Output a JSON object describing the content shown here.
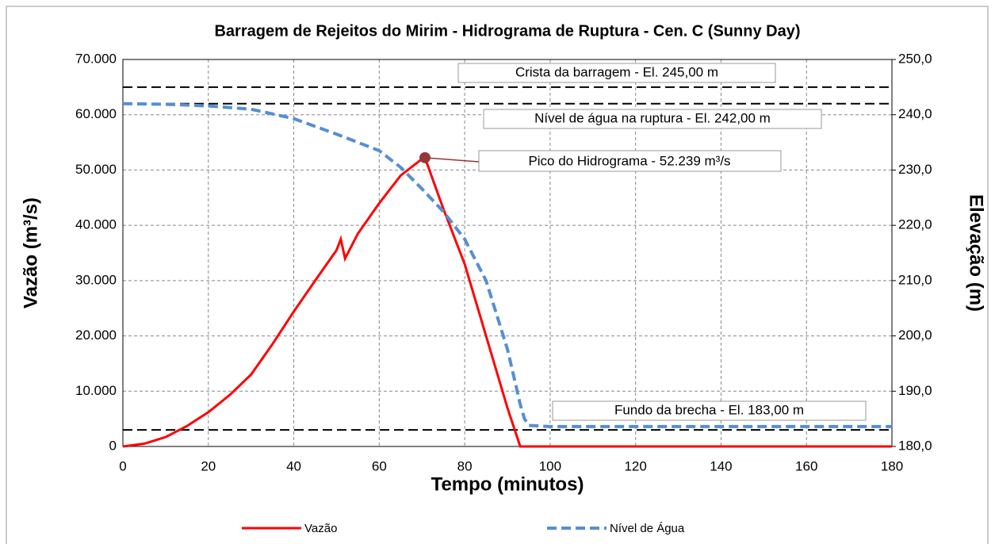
{
  "chart_data": {
    "type": "line",
    "title": "Barragem de Rejeitos do Mirim - Hidrograma de Ruptura - Cen. C (Sunny Day)",
    "xlabel": "Tempo (minutos)",
    "ylabel": "Vazão (m³/s)",
    "y2label": "Elevação (m)",
    "xlim": [
      0,
      180
    ],
    "xticks": [
      0,
      20,
      40,
      60,
      80,
      100,
      120,
      140,
      160,
      180
    ],
    "ylim": [
      0,
      70000
    ],
    "yticks": [
      {
        "value": 0,
        "label": "0"
      },
      {
        "value": 10000,
        "label": "10.000"
      },
      {
        "value": 20000,
        "label": "20.000"
      },
      {
        "value": 30000,
        "label": "30.000"
      },
      {
        "value": 40000,
        "label": "40.000"
      },
      {
        "value": 50000,
        "label": "50.000"
      },
      {
        "value": 60000,
        "label": "60.000"
      },
      {
        "value": 70000,
        "label": "70.000"
      }
    ],
    "y2lim": [
      180,
      250
    ],
    "y2ticks": [
      {
        "value": 180,
        "label": "180,0"
      },
      {
        "value": 190,
        "label": "190,0"
      },
      {
        "value": 200,
        "label": "200,0"
      },
      {
        "value": 210,
        "label": "210,0"
      },
      {
        "value": 220,
        "label": "220,0"
      },
      {
        "value": 230,
        "label": "230,0"
      },
      {
        "value": 240,
        "label": "240,0"
      },
      {
        "value": 250,
        "label": "250,0"
      }
    ],
    "grid": true,
    "legend": "bottom",
    "series": [
      {
        "name": "Vazão",
        "color": "#ff0000",
        "style": "solid",
        "x": [
          0,
          5,
          10,
          15,
          20,
          25,
          30,
          35,
          40,
          45,
          50,
          51,
          52,
          55,
          60,
          65,
          70,
          70.7,
          75,
          80,
          85,
          90,
          93,
          100,
          180
        ],
        "values": [
          0,
          500,
          1700,
          3700,
          6200,
          9300,
          13000,
          18500,
          24400,
          30000,
          35500,
          37500,
          34000,
          38500,
          44000,
          49000,
          52000,
          52239,
          43000,
          33000,
          20000,
          7000,
          0,
          0,
          0
        ]
      },
      {
        "name": "Nível de Água",
        "color": "#558ed5",
        "style": "dashed",
        "axis": "y2",
        "x": [
          0,
          10,
          20,
          30,
          40,
          50,
          60,
          65,
          70,
          75,
          80,
          85,
          90,
          92,
          93,
          94,
          95,
          100,
          180
        ],
        "values": [
          242,
          241.9,
          241.6,
          241,
          239.3,
          236.5,
          233.5,
          230.5,
          226.6,
          222.5,
          217.5,
          210,
          197.6,
          191,
          187.6,
          185,
          183.8,
          183.6,
          183.6
        ]
      }
    ],
    "reference_lines": [
      {
        "label": "Crista da barragem - El. 245,00 m",
        "value": 245
      },
      {
        "label": "Nível de água na ruptura - El. 242,00 m",
        "value": 242
      },
      {
        "label": "Fundo da brecha - El. 183,00 m",
        "value": 183
      }
    ],
    "peak": {
      "label": "Pico do Hidrograma - 52.239 m³/s",
      "x": 70.7,
      "value": 52239,
      "color": "#953735"
    }
  }
}
